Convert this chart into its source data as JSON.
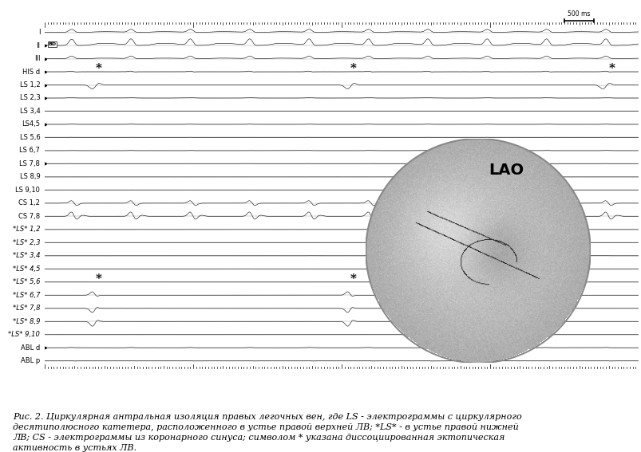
{
  "background_color": "#ffffff",
  "channel_labels": [
    "I",
    "II",
    "III",
    "HIS d",
    "LS 1,2",
    "LS 2,3",
    "LS 3,4",
    "LS4,5",
    "LS 5,6",
    "LS 6,7",
    "LS 7,8",
    "LS 8,9",
    "LS 9,10",
    "CS 1,2",
    "CS 7,8",
    "*LS* 1,2",
    "*LS* 2,3",
    "*LS* 3,4",
    "*LS* 4,5",
    "*LS* 5,6",
    "*LS* 6,7",
    "*LS* 7,8",
    "*LS* 8,9",
    "*LS* 9,10",
    "ABL d",
    "ABL p"
  ],
  "n_channels": 26,
  "caption_line1": "Рис. 2. Циркулярная антральная изоляция правых легочных вен, где LS - электрограммы с циркулярного",
  "caption_line2": "десятиполюсного катетера, расположенного в устье правой верхней ЛВ; *LS* - в устье правой нижней",
  "caption_line3": "ЛВ; CS - электрограммы из коронарного синуса; символом * указана диссоциированная эктопическая",
  "caption_line4": "активность в устьях ЛВ.",
  "lao_label": "LAO",
  "scale_bar_label": "500 ms",
  "label_fontsize": 6.0,
  "caption_fontsize": 8.0
}
